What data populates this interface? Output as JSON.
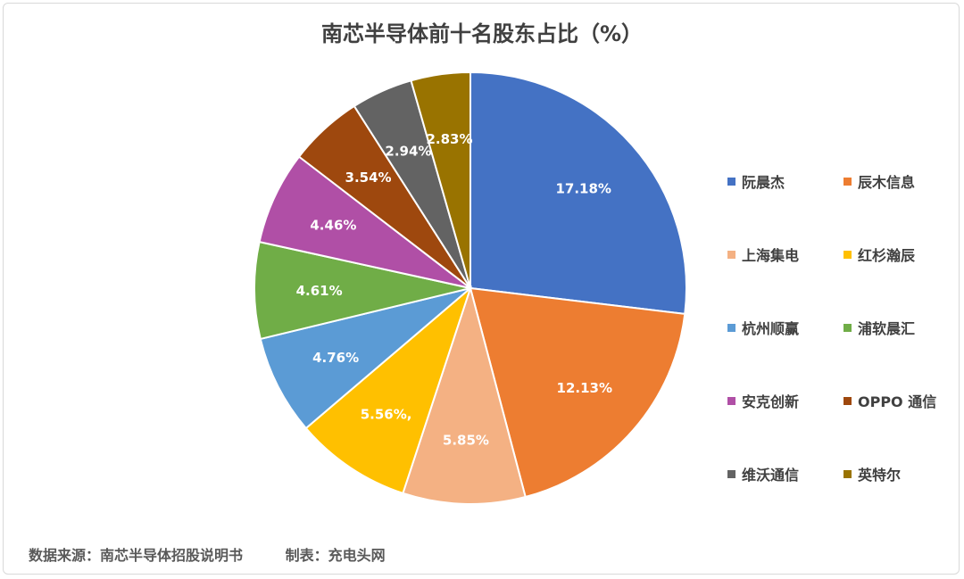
{
  "chart_data": {
    "type": "pie",
    "title": "南芯半导体前十名股东占比（%）",
    "categories": [
      "阮晨杰",
      "辰木信息",
      "上海集电",
      "红杉瀚辰",
      "杭州顺赢",
      "浦软晨汇",
      "安克创新",
      "OPPO 通信",
      "维沃通信",
      "英特尔"
    ],
    "values": [
      17.18,
      12.13,
      5.85,
      5.56,
      4.76,
      4.61,
      4.46,
      3.54,
      2.94,
      2.83
    ],
    "data_labels": [
      "17.18%",
      "12.13%",
      "5.85%",
      "5.56%,",
      "4.76%",
      "4.61%",
      "4.46%",
      "3.54%",
      "2.94%",
      "2.83%"
    ],
    "colors": [
      "#4472C4",
      "#ED7D31",
      "#F4B183",
      "#FFC000",
      "#5B9BD5",
      "#70AD47",
      "#B04FA6",
      "#9E480E",
      "#636363",
      "#997300"
    ],
    "legend_position": "right"
  },
  "footer": {
    "source": "数据来源：南芯半导体招股说明书",
    "maker": "制表：充电头网"
  }
}
